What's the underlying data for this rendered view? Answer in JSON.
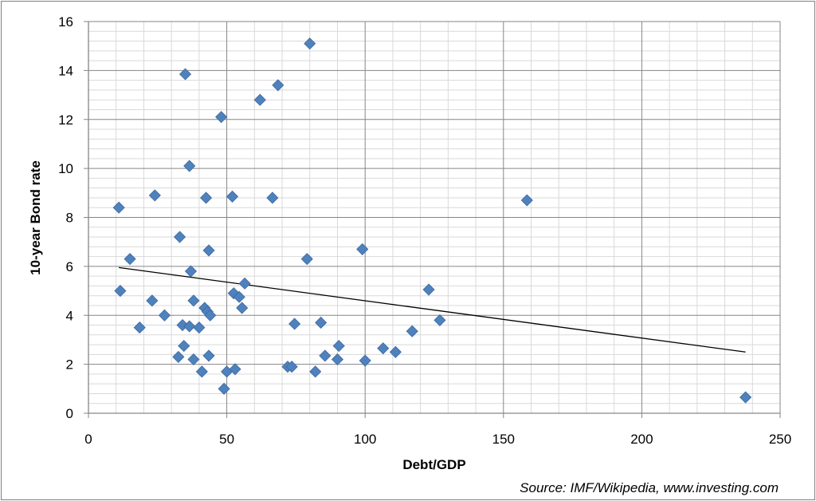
{
  "chart_data": {
    "type": "scatter",
    "title": "",
    "xlabel": "Debt/GDP",
    "ylabel": "10-year  Bond rate",
    "source": "Source: IMF/Wikipedia, www.investing.com",
    "xlim": [
      0,
      250
    ],
    "ylim": [
      0,
      16
    ],
    "x_ticks": [
      0,
      50,
      100,
      150,
      200,
      250
    ],
    "y_ticks": [
      0,
      2,
      4,
      6,
      8,
      10,
      12,
      14,
      16
    ],
    "x_minor_step": 10,
    "y_minor_step": 0.4,
    "grid": true,
    "marker": "diamond",
    "marker_color": "#4f81bd",
    "points": [
      {
        "x": 11,
        "y": 8.4
      },
      {
        "x": 11.5,
        "y": 5.0
      },
      {
        "x": 15,
        "y": 6.3
      },
      {
        "x": 18.5,
        "y": 3.5
      },
      {
        "x": 23,
        "y": 4.6
      },
      {
        "x": 24,
        "y": 8.9
      },
      {
        "x": 27.5,
        "y": 4.0
      },
      {
        "x": 32.5,
        "y": 2.3
      },
      {
        "x": 33,
        "y": 7.2
      },
      {
        "x": 34,
        "y": 3.6
      },
      {
        "x": 34.5,
        "y": 2.75
      },
      {
        "x": 35,
        "y": 13.85
      },
      {
        "x": 36.5,
        "y": 10.1
      },
      {
        "x": 36.5,
        "y": 3.55
      },
      {
        "x": 37,
        "y": 5.8
      },
      {
        "x": 38,
        "y": 2.2
      },
      {
        "x": 38,
        "y": 4.6
      },
      {
        "x": 40,
        "y": 3.5
      },
      {
        "x": 41,
        "y": 1.7
      },
      {
        "x": 42,
        "y": 4.3
      },
      {
        "x": 42.5,
        "y": 8.8
      },
      {
        "x": 43,
        "y": 4.15
      },
      {
        "x": 43.5,
        "y": 6.65
      },
      {
        "x": 43.5,
        "y": 2.35
      },
      {
        "x": 44,
        "y": 4.0
      },
      {
        "x": 48,
        "y": 12.1
      },
      {
        "x": 49,
        "y": 1.0
      },
      {
        "x": 50,
        "y": 1.7
      },
      {
        "x": 52,
        "y": 8.85
      },
      {
        "x": 52.5,
        "y": 4.9
      },
      {
        "x": 53,
        "y": 1.8
      },
      {
        "x": 54.5,
        "y": 4.75
      },
      {
        "x": 55.5,
        "y": 4.3
      },
      {
        "x": 56.5,
        "y": 5.3
      },
      {
        "x": 62,
        "y": 12.8
      },
      {
        "x": 66.5,
        "y": 8.8
      },
      {
        "x": 68.5,
        "y": 13.4
      },
      {
        "x": 72,
        "y": 1.9
      },
      {
        "x": 73.5,
        "y": 1.9
      },
      {
        "x": 74.5,
        "y": 3.65
      },
      {
        "x": 79,
        "y": 6.3
      },
      {
        "x": 80,
        "y": 15.1
      },
      {
        "x": 82,
        "y": 1.7
      },
      {
        "x": 84,
        "y": 3.7
      },
      {
        "x": 85.5,
        "y": 2.35
      },
      {
        "x": 90,
        "y": 2.2
      },
      {
        "x": 90.5,
        "y": 2.75
      },
      {
        "x": 99,
        "y": 6.7
      },
      {
        "x": 100,
        "y": 2.15
      },
      {
        "x": 106.5,
        "y": 2.65
      },
      {
        "x": 111,
        "y": 2.5
      },
      {
        "x": 117,
        "y": 3.35
      },
      {
        "x": 123,
        "y": 5.05
      },
      {
        "x": 127,
        "y": 3.8
      },
      {
        "x": 158.5,
        "y": 8.7
      },
      {
        "x": 237.5,
        "y": 0.65
      }
    ],
    "trendline": {
      "type": "linear",
      "x": [
        11,
        237.5
      ],
      "y": [
        5.95,
        2.5
      ],
      "color": "#000000"
    }
  }
}
